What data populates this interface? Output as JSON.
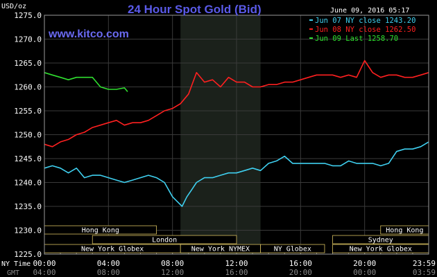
{
  "header": {
    "title": "24 Hour Spot Gold (Bid)",
    "unit": "USD/oz",
    "date_label": "June 09, 2016 05:17",
    "website": "www.kitco.com"
  },
  "legend": [
    {
      "label": "Jun 07 NY close 1243.20",
      "color": "#3fd0f0"
    },
    {
      "label": "Jun 08 NY close 1262.50",
      "color": "#ff2020"
    },
    {
      "label": "Jun 09 Last 1258.70",
      "color": "#30e030"
    }
  ],
  "sessions": [
    {
      "label": "Hong Kong",
      "start": 0.0,
      "end": 7.0,
      "row": 0
    },
    {
      "label": "Hong Kong",
      "start": 21.0,
      "end": 24.0,
      "row": 0
    },
    {
      "label": "London",
      "start": 3.0,
      "end": 12.0,
      "row": 1
    },
    {
      "label": "Sydney",
      "start": 18.0,
      "end": 24.0,
      "row": 1
    },
    {
      "label": "New York Globex",
      "start": 0.0,
      "end": 8.5,
      "row": 2
    },
    {
      "label": "New York NYMEX",
      "start": 8.5,
      "end": 13.5,
      "row": 2
    },
    {
      "label": "NY Globex",
      "start": 13.5,
      "end": 17.5,
      "row": 2
    },
    {
      "label": "New York Globex",
      "start": 18.0,
      "end": 24.0,
      "row": 2
    }
  ],
  "axis_labels": {
    "ny_time": "NY Time",
    "gmt": "GMT"
  },
  "colors": {
    "background": "#000000",
    "grid": "#3a3a3a",
    "nymex_shade": "#1b211b",
    "axis_text": "#ffffff",
    "gmt_text": "#8a8a8a",
    "title": "#5a5ae8",
    "session_border": "#d8c060"
  },
  "chart_data": {
    "type": "line",
    "title": "24 Hour Spot Gold (Bid)",
    "ylabel": "USD/oz",
    "xlim": [
      0,
      24
    ],
    "ylim": [
      1225,
      1275
    ],
    "yticks": [
      1225.0,
      1230.0,
      1235.0,
      1240.0,
      1245.0,
      1250.0,
      1255.0,
      1260.0,
      1265.0,
      1270.0,
      1275.0
    ],
    "ytick_labels": [
      "1225.0",
      "1230.0",
      "1235.0",
      "1240.0",
      "1245.0",
      "1250.0",
      "1255.0",
      "1260.0",
      "1265.0",
      "1270.0",
      "1275.0"
    ],
    "xticks": [
      0,
      4,
      8,
      12,
      16,
      20,
      24
    ],
    "xtick_labels_ny": [
      "00:00",
      "04:00",
      "08:00",
      "12:00",
      "16:00",
      "20:00",
      "23:59"
    ],
    "xtick_labels_gmt": [
      "04:00",
      "08:00",
      "12:00",
      "16:00",
      "20:00",
      "00:00",
      "03:59"
    ],
    "shaded_region_hours": [
      8.5,
      13.5
    ],
    "grid": true,
    "series": [
      {
        "name": "Jun 07 NY close 1243.20",
        "color": "#3fd0f0",
        "x": [
          0,
          0.5,
          1,
          1.5,
          2,
          2.5,
          3,
          3.5,
          4,
          4.5,
          5,
          5.5,
          6,
          6.5,
          7,
          7.5,
          8,
          8.3,
          8.6,
          8.9,
          9.2,
          9.5,
          10,
          10.5,
          11,
          11.5,
          12,
          12.5,
          13,
          13.5,
          14,
          14.5,
          15,
          15.5,
          16,
          16.5,
          17,
          17.5,
          18,
          18.5,
          19,
          19.5,
          20,
          20.5,
          21,
          21.5,
          22,
          22.5,
          23,
          23.5,
          24
        ],
        "y": [
          1243,
          1243.5,
          1243,
          1242,
          1243,
          1241,
          1241.5,
          1241.5,
          1241,
          1240.5,
          1240,
          1240.5,
          1241,
          1241.5,
          1241,
          1240,
          1237,
          1236,
          1235,
          1237,
          1238.5,
          1240,
          1241,
          1241,
          1241.5,
          1242,
          1242,
          1242.5,
          1243,
          1242.5,
          1244,
          1244.5,
          1245.5,
          1244,
          1244,
          1244,
          1244,
          1244,
          1243.5,
          1243.5,
          1244.5,
          1244,
          1244,
          1244,
          1243.5,
          1244,
          1246.5,
          1247,
          1247,
          1247.5,
          1248.5
        ]
      },
      {
        "name": "Jun 08 NY close 1262.50",
        "color": "#ff2020",
        "x": [
          0,
          0.5,
          1,
          1.5,
          2,
          2.5,
          3,
          3.5,
          4,
          4.5,
          5,
          5.5,
          6,
          6.5,
          7,
          7.5,
          8,
          8.5,
          9,
          9.5,
          10,
          10.5,
          11,
          11.5,
          12,
          12.5,
          13,
          13.5,
          14,
          14.5,
          15,
          15.5,
          16,
          16.5,
          17,
          17.5,
          18,
          18.5,
          19,
          19.5,
          20,
          20.5,
          21,
          21.5,
          22,
          22.5,
          23,
          23.5,
          24
        ],
        "y": [
          1248,
          1247.5,
          1248.5,
          1249,
          1250,
          1250.5,
          1251.5,
          1252,
          1252.5,
          1253,
          1252,
          1252.5,
          1252.5,
          1253,
          1254,
          1255,
          1255.5,
          1256.5,
          1258.5,
          1263,
          1261,
          1261.5,
          1260,
          1262,
          1261,
          1261,
          1260,
          1260,
          1260.5,
          1260.5,
          1261,
          1261,
          1261.5,
          1262,
          1262.5,
          1262.5,
          1262.5,
          1262,
          1262.5,
          1262,
          1265.5,
          1263,
          1262,
          1262.5,
          1262.5,
          1262,
          1262,
          1262.5,
          1263
        ]
      },
      {
        "name": "Jun 09 Last 1258.70",
        "color": "#30e030",
        "x": [
          0,
          0.5,
          1,
          1.5,
          2,
          2.5,
          3,
          3.5,
          4,
          4.5,
          5,
          5.2
        ],
        "y": [
          1263,
          1262.5,
          1262,
          1261.5,
          1262,
          1262,
          1262,
          1260,
          1259.5,
          1259.5,
          1259.8,
          1259
        ]
      }
    ]
  }
}
